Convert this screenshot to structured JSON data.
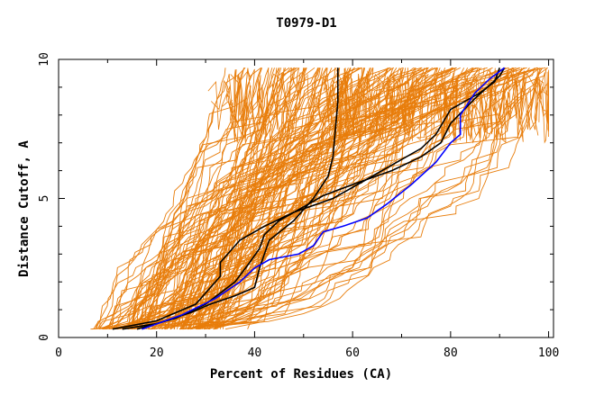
{
  "chart_data": {
    "type": "line",
    "title": "T0979-D1",
    "xlabel": "Percent of Residues (CA)",
    "ylabel": "Distance Cutoff, A",
    "xlim": [
      0,
      101
    ],
    "ylim": [
      0,
      10
    ],
    "xticks": [
      0,
      20,
      40,
      60,
      80,
      100
    ],
    "yticks": [
      0,
      5,
      10
    ],
    "grid": false,
    "colors": {
      "background_models": "#e87d0b",
      "highlight_black": "#000000",
      "highlight_blue": "#0000ff",
      "axis": "#000000"
    },
    "series": [
      {
        "color": "#000000",
        "x": [
          13,
          20,
          27,
          31,
          36,
          40,
          41,
          43,
          48,
          52,
          55,
          56,
          56.5,
          57,
          57
        ],
        "y": [
          0.3,
          0.5,
          0.9,
          1.2,
          1.5,
          1.8,
          2.5,
          3.5,
          4.2,
          5.0,
          5.8,
          6.5,
          7.5,
          8.5,
          9.7
        ]
      },
      {
        "color": "#000000",
        "x": [
          16,
          24,
          30,
          36,
          39,
          41,
          42,
          45,
          50,
          54,
          60,
          68,
          74,
          78,
          80,
          85,
          90,
          91
        ],
        "y": [
          0.3,
          0.7,
          1.2,
          2.0,
          2.7,
          3.2,
          3.7,
          4.2,
          4.7,
          5.1,
          5.5,
          6.0,
          6.5,
          7.0,
          7.7,
          8.6,
          9.4,
          9.7
        ]
      },
      {
        "color": "#000000",
        "x": [
          11,
          20,
          28,
          33,
          33,
          37,
          42,
          48,
          56,
          62,
          69,
          74,
          77,
          80,
          86,
          89,
          90
        ],
        "y": [
          0.3,
          0.6,
          1.2,
          2.2,
          2.7,
          3.5,
          4.0,
          4.5,
          5.0,
          5.6,
          6.3,
          6.8,
          7.3,
          8.2,
          8.8,
          9.2,
          9.7
        ]
      },
      {
        "color": "#0000ff",
        "x": [
          17,
          25,
          32,
          37,
          40,
          43,
          49,
          52,
          54,
          58,
          63,
          67,
          72,
          77,
          80,
          82,
          82,
          85,
          88,
          91
        ],
        "y": [
          0.3,
          0.8,
          1.4,
          2.0,
          2.5,
          2.8,
          3.0,
          3.3,
          3.8,
          4.0,
          4.3,
          4.8,
          5.5,
          6.3,
          7.0,
          7.3,
          8.0,
          8.8,
          9.3,
          9.7
        ]
      }
    ]
  }
}
